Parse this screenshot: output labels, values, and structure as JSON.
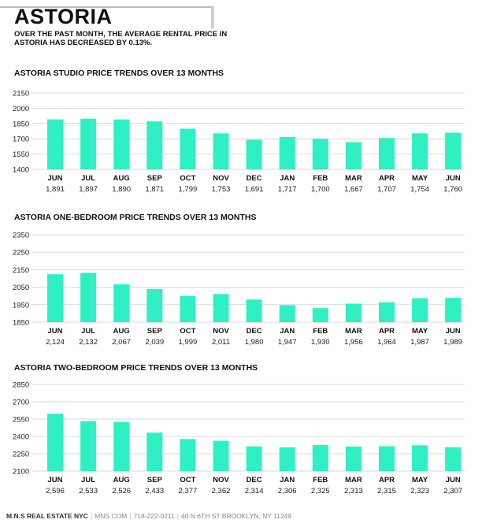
{
  "header": {
    "title": "ASTORIA",
    "subtitle": "OVER THE PAST MONTH, THE AVERAGE RENTAL PRICE IN ASTORIA HAS DECREASED BY 0.13%."
  },
  "colors": {
    "bar": "#2ef0c3",
    "grid": "#d9d9d9"
  },
  "chart_data": [
    {
      "type": "bar",
      "title": "ASTORIA STUDIO PRICE TRENDS OVER 13 MONTHS",
      "categories": [
        "JUN",
        "JUL",
        "AUG",
        "SEP",
        "OCT",
        "NOV",
        "DEC",
        "JAN",
        "FEB",
        "MAR",
        "APR",
        "MAY",
        "JUN"
      ],
      "values": [
        1891,
        1897,
        1890,
        1871,
        1799,
        1753,
        1691,
        1717,
        1700,
        1667,
        1707,
        1754,
        1760
      ],
      "value_labels": [
        "1,891",
        "1,897",
        "1,890",
        "1,871",
        "1,799",
        "1,753",
        "1,691",
        "1,717",
        "1,700",
        "1,667",
        "1,707",
        "1,754",
        "1,760"
      ],
      "yticks": [
        "2150",
        "2000",
        "1850",
        "1700",
        "1550",
        "1400"
      ],
      "ylim": [
        1400,
        2150
      ],
      "grid": true
    },
    {
      "type": "bar",
      "title": "ASTORIA ONE-BEDROOM PRICE TRENDS OVER 13 MONTHS",
      "categories": [
        "JUN",
        "JUL",
        "AUG",
        "SEP",
        "OCT",
        "NOV",
        "DEC",
        "JAN",
        "FEB",
        "MAR",
        "APR",
        "MAY",
        "JUN"
      ],
      "values": [
        2124,
        2132,
        2067,
        2039,
        1999,
        2011,
        1980,
        1947,
        1930,
        1956,
        1964,
        1987,
        1989
      ],
      "value_labels": [
        "2,124",
        "2,132",
        "2,067",
        "2,039",
        "1,999",
        "2,011",
        "1,980",
        "1,947",
        "1,930",
        "1,956",
        "1,964",
        "1,987",
        "1,989"
      ],
      "yticks": [
        "2350",
        "2250",
        "2150",
        "2050",
        "1950",
        "1850"
      ],
      "ylim": [
        1850,
        2350
      ],
      "grid": true
    },
    {
      "type": "bar",
      "title": "ASTORIA TWO-BEDROOM PRICE TRENDS OVER 13 MONTHS",
      "categories": [
        "JUN",
        "JUL",
        "AUG",
        "SEP",
        "OCT",
        "NOV",
        "DEC",
        "JAN",
        "FEB",
        "MAR",
        "APR",
        "MAY",
        "JUN"
      ],
      "values": [
        2596,
        2533,
        2526,
        2433,
        2377,
        2362,
        2314,
        2306,
        2325,
        2313,
        2315,
        2323,
        2307
      ],
      "value_labels": [
        "2,596",
        "2,533",
        "2,526",
        "2,433",
        "2,377",
        "2,362",
        "2,314",
        "2,306",
        "2,325",
        "2,313",
        "2,315",
        "2,323",
        "2,307"
      ],
      "yticks": [
        "2850",
        "2700",
        "2550",
        "2400",
        "2250",
        "2100"
      ],
      "ylim": [
        2100,
        2850
      ],
      "grid": true
    }
  ],
  "footer": {
    "brand": "M.N.S REAL ESTATE NYC",
    "website": "MNS.COM",
    "phone": "718-222-0211",
    "address": "40 N 6TH ST BROOKLYN, NY 11249"
  }
}
